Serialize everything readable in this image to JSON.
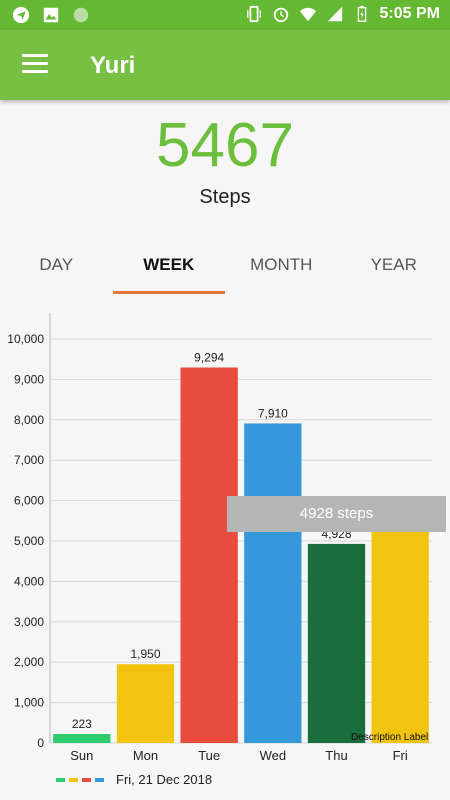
{
  "status_bar": {
    "time": "5:05 PM",
    "icons": [
      "telegram-icon",
      "image-icon",
      "circle-icon",
      "vibrate-icon",
      "alarm-icon",
      "wifi-icon",
      "signal-icon",
      "battery-icon"
    ]
  },
  "app_bar": {
    "menu_icon": "hamburger-menu-icon",
    "title": "Yuri"
  },
  "summary": {
    "count": "5467",
    "label": "Steps"
  },
  "tabs": [
    {
      "label": "DAY",
      "active": false
    },
    {
      "label": "WEEK",
      "active": true
    },
    {
      "label": "MONTH",
      "active": false
    },
    {
      "label": "YEAR",
      "active": false
    }
  ],
  "tooltip": {
    "text": "4928 steps"
  },
  "description_label": "Description Label",
  "legend": {
    "colors": [
      "#2ecc71",
      "#f1c40f",
      "#e74c3c",
      "#3498db"
    ],
    "label": "Fri, 21 Dec 2018"
  },
  "chart_data": {
    "type": "bar",
    "categories": [
      "Sun",
      "Mon",
      "Tue",
      "Wed",
      "Thu",
      "Fri"
    ],
    "values": [
      223,
      1950,
      9294,
      7910,
      4928,
      5467
    ],
    "value_labels": [
      "223",
      "1,950",
      "9,294",
      "7,910",
      "4,928",
      ""
    ],
    "colors": [
      "#2ecc71",
      "#f1c40f",
      "#e74c3c",
      "#3498db",
      "#1b6d3d",
      "#f1c40f"
    ],
    "ylim": [
      0,
      10000
    ],
    "yticks": [
      0,
      1000,
      2000,
      3000,
      4000,
      5000,
      6000,
      7000,
      8000,
      9000,
      10000
    ],
    "ytick_labels": [
      "0",
      "1,000",
      "2,000",
      "3,000",
      "4,000",
      "5,000",
      "6,000",
      "7,000",
      "8,000",
      "9,000",
      "10,000"
    ],
    "grid": true
  }
}
